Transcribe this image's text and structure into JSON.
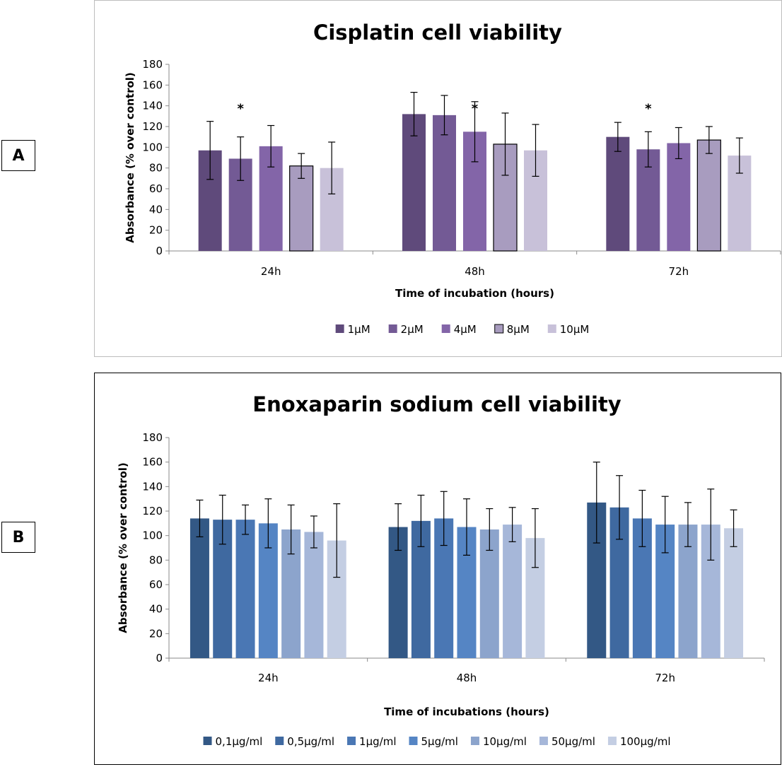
{
  "panels": [
    {
      "label": "A"
    },
    {
      "label": "B"
    }
  ],
  "chart_data": [
    {
      "type": "bar",
      "title": "Cisplatin cell viability",
      "xlabel": "Time of incubation (hours)",
      "ylabel": "Absorbance (% over control)",
      "ylim": [
        0,
        180
      ],
      "yticks": [
        0,
        20,
        40,
        60,
        80,
        100,
        120,
        140,
        160,
        180
      ],
      "grid": false,
      "legend_position": "bottom",
      "categories": [
        "24h",
        "48h",
        "72h"
      ],
      "series": [
        {
          "name": "1µM",
          "color": "#5f4a7b",
          "values": [
            97,
            132,
            110
          ],
          "errors": [
            28,
            21,
            14
          ]
        },
        {
          "name": "2µM",
          "color": "#735a95",
          "values": [
            89,
            131,
            98
          ],
          "errors": [
            21,
            19,
            17
          ]
        },
        {
          "name": "4µM",
          "color": "#8365a8",
          "values": [
            101,
            115,
            104
          ],
          "errors": [
            20,
            29,
            15
          ]
        },
        {
          "name": "8µM",
          "color": "#a89cbf",
          "values": [
            82,
            103,
            107
          ],
          "errors": [
            12,
            30,
            13
          ],
          "outlined": true
        },
        {
          "name": "10µM",
          "color": "#c8c1d9",
          "values": [
            80,
            97,
            92
          ],
          "errors": [
            25,
            25,
            17
          ]
        }
      ],
      "annotations": [
        {
          "text": "*",
          "category": "24h",
          "series": "2µM",
          "y": 140
        },
        {
          "text": "*",
          "category": "48h",
          "series": "4µM",
          "y": 140
        },
        {
          "text": "*",
          "category": "72h",
          "series": "2µM",
          "y": 140
        }
      ]
    },
    {
      "type": "bar",
      "title": "Enoxaparin sodium cell viability",
      "xlabel": "Time of incubations (hours)",
      "ylabel": "Absorbance (% over control)",
      "ylim": [
        0,
        180
      ],
      "yticks": [
        0,
        20,
        40,
        60,
        80,
        100,
        120,
        140,
        160,
        180
      ],
      "grid": false,
      "legend_position": "bottom",
      "categories": [
        "24h",
        "48h",
        "72h"
      ],
      "series": [
        {
          "name": "0,1µg/ml",
          "color": "#335885",
          "values": [
            114,
            107,
            127
          ],
          "errors": [
            15,
            19,
            33
          ]
        },
        {
          "name": "0,5µg/ml",
          "color": "#3f69a0",
          "values": [
            113,
            112,
            123
          ],
          "errors": [
            20,
            21,
            26
          ]
        },
        {
          "name": "1µg/ml",
          "color": "#4a77b4",
          "values": [
            113,
            114,
            114
          ],
          "errors": [
            12,
            22,
            23
          ]
        },
        {
          "name": "5µg/ml",
          "color": "#5585c4",
          "values": [
            110,
            107,
            109
          ],
          "errors": [
            20,
            23,
            23
          ]
        },
        {
          "name": "10µg/ml",
          "color": "#8ca4cc",
          "values": [
            105,
            105,
            109
          ],
          "errors": [
            20,
            17,
            18
          ]
        },
        {
          "name": "50µg/ml",
          "color": "#a6b7d9",
          "values": [
            103,
            109,
            109
          ],
          "errors": [
            13,
            14,
            29
          ]
        },
        {
          "name": "100µg/ml",
          "color": "#c4cee3",
          "values": [
            96,
            98,
            106
          ],
          "errors": [
            30,
            24,
            15
          ]
        }
      ],
      "annotations": []
    }
  ]
}
